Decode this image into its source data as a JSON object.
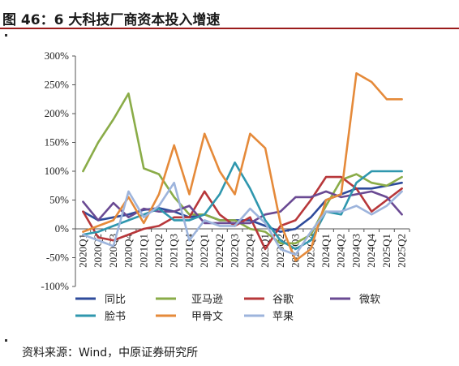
{
  "header": {
    "title": "图 46：6 大科技厂商资本投入增速"
  },
  "footer": {
    "source": "资料来源：Wind，中原证券研究所"
  },
  "chart_data": {
    "type": "line",
    "title": "",
    "xlabel": "",
    "ylabel": "",
    "ylim": [
      -100,
      300
    ],
    "yticks": [
      -100,
      -50,
      0,
      50,
      100,
      150,
      200,
      250,
      300
    ],
    "ytick_labels": [
      "-100%",
      "-50%",
      "0%",
      "50%",
      "100%",
      "150%",
      "200%",
      "250%",
      "300%"
    ],
    "grid": false,
    "legend_position": "bottom",
    "categories": [
      "2020Q1",
      "2020Q2",
      "2020Q3",
      "2020Q4",
      "2021Q1",
      "2021Q2",
      "2021Q3",
      "2021Q4",
      "2022Q1",
      "2022Q2",
      "2022Q3",
      "2022Q4",
      "2023Q1",
      "2023Q2",
      "2023Q3",
      "2023Q4",
      "2024Q1",
      "2024Q2",
      "2024Q3",
      "2024Q4",
      "2025Q1",
      "2025Q2"
    ],
    "series": [
      {
        "name": "同比",
        "color": "#2e4b9b",
        "values": [
          30,
          15,
          20,
          25,
          33,
          36,
          30,
          20,
          25,
          15,
          15,
          15,
          5,
          -5,
          0,
          20,
          50,
          60,
          70,
          70,
          75,
          80
        ]
      },
      {
        "name": "亚马逊",
        "color": "#8aac48",
        "values": [
          100,
          150,
          190,
          235,
          105,
          95,
          55,
          25,
          25,
          15,
          15,
          0,
          -5,
          -25,
          -25,
          -10,
          40,
          85,
          95,
          80,
          75,
          90
        ]
      },
      {
        "name": "谷歌",
        "color": "#b7373a",
        "values": [
          30,
          -15,
          -20,
          -10,
          0,
          5,
          20,
          20,
          65,
          25,
          5,
          20,
          -35,
          5,
          15,
          50,
          90,
          90,
          70,
          30,
          50,
          70
        ]
      },
      {
        "name": "微软",
        "color": "#6a4a93",
        "values": [
          47,
          15,
          45,
          20,
          35,
          30,
          30,
          40,
          10,
          10,
          10,
          10,
          25,
          30,
          55,
          55,
          65,
          55,
          60,
          65,
          55,
          25
        ]
      },
      {
        "name": "脸书",
        "color": "#2f97ae",
        "values": [
          -10,
          -5,
          5,
          15,
          25,
          35,
          15,
          15,
          25,
          60,
          115,
          70,
          15,
          -20,
          -35,
          -20,
          30,
          25,
          80,
          100,
          100,
          100
        ]
      },
      {
        "name": "甲骨文",
        "color": "#e58a3a",
        "values": [
          -5,
          5,
          15,
          55,
          10,
          60,
          145,
          60,
          165,
          100,
          60,
          165,
          140,
          10,
          -55,
          -35,
          50,
          60,
          270,
          255,
          225,
          225
        ]
      },
      {
        "name": "苹果",
        "color": "#9db4dc",
        "values": [
          -10,
          -20,
          -30,
          65,
          20,
          40,
          80,
          -20,
          15,
          5,
          5,
          35,
          10,
          -35,
          -45,
          -5,
          30,
          30,
          40,
          25,
          40,
          65
        ]
      }
    ]
  }
}
